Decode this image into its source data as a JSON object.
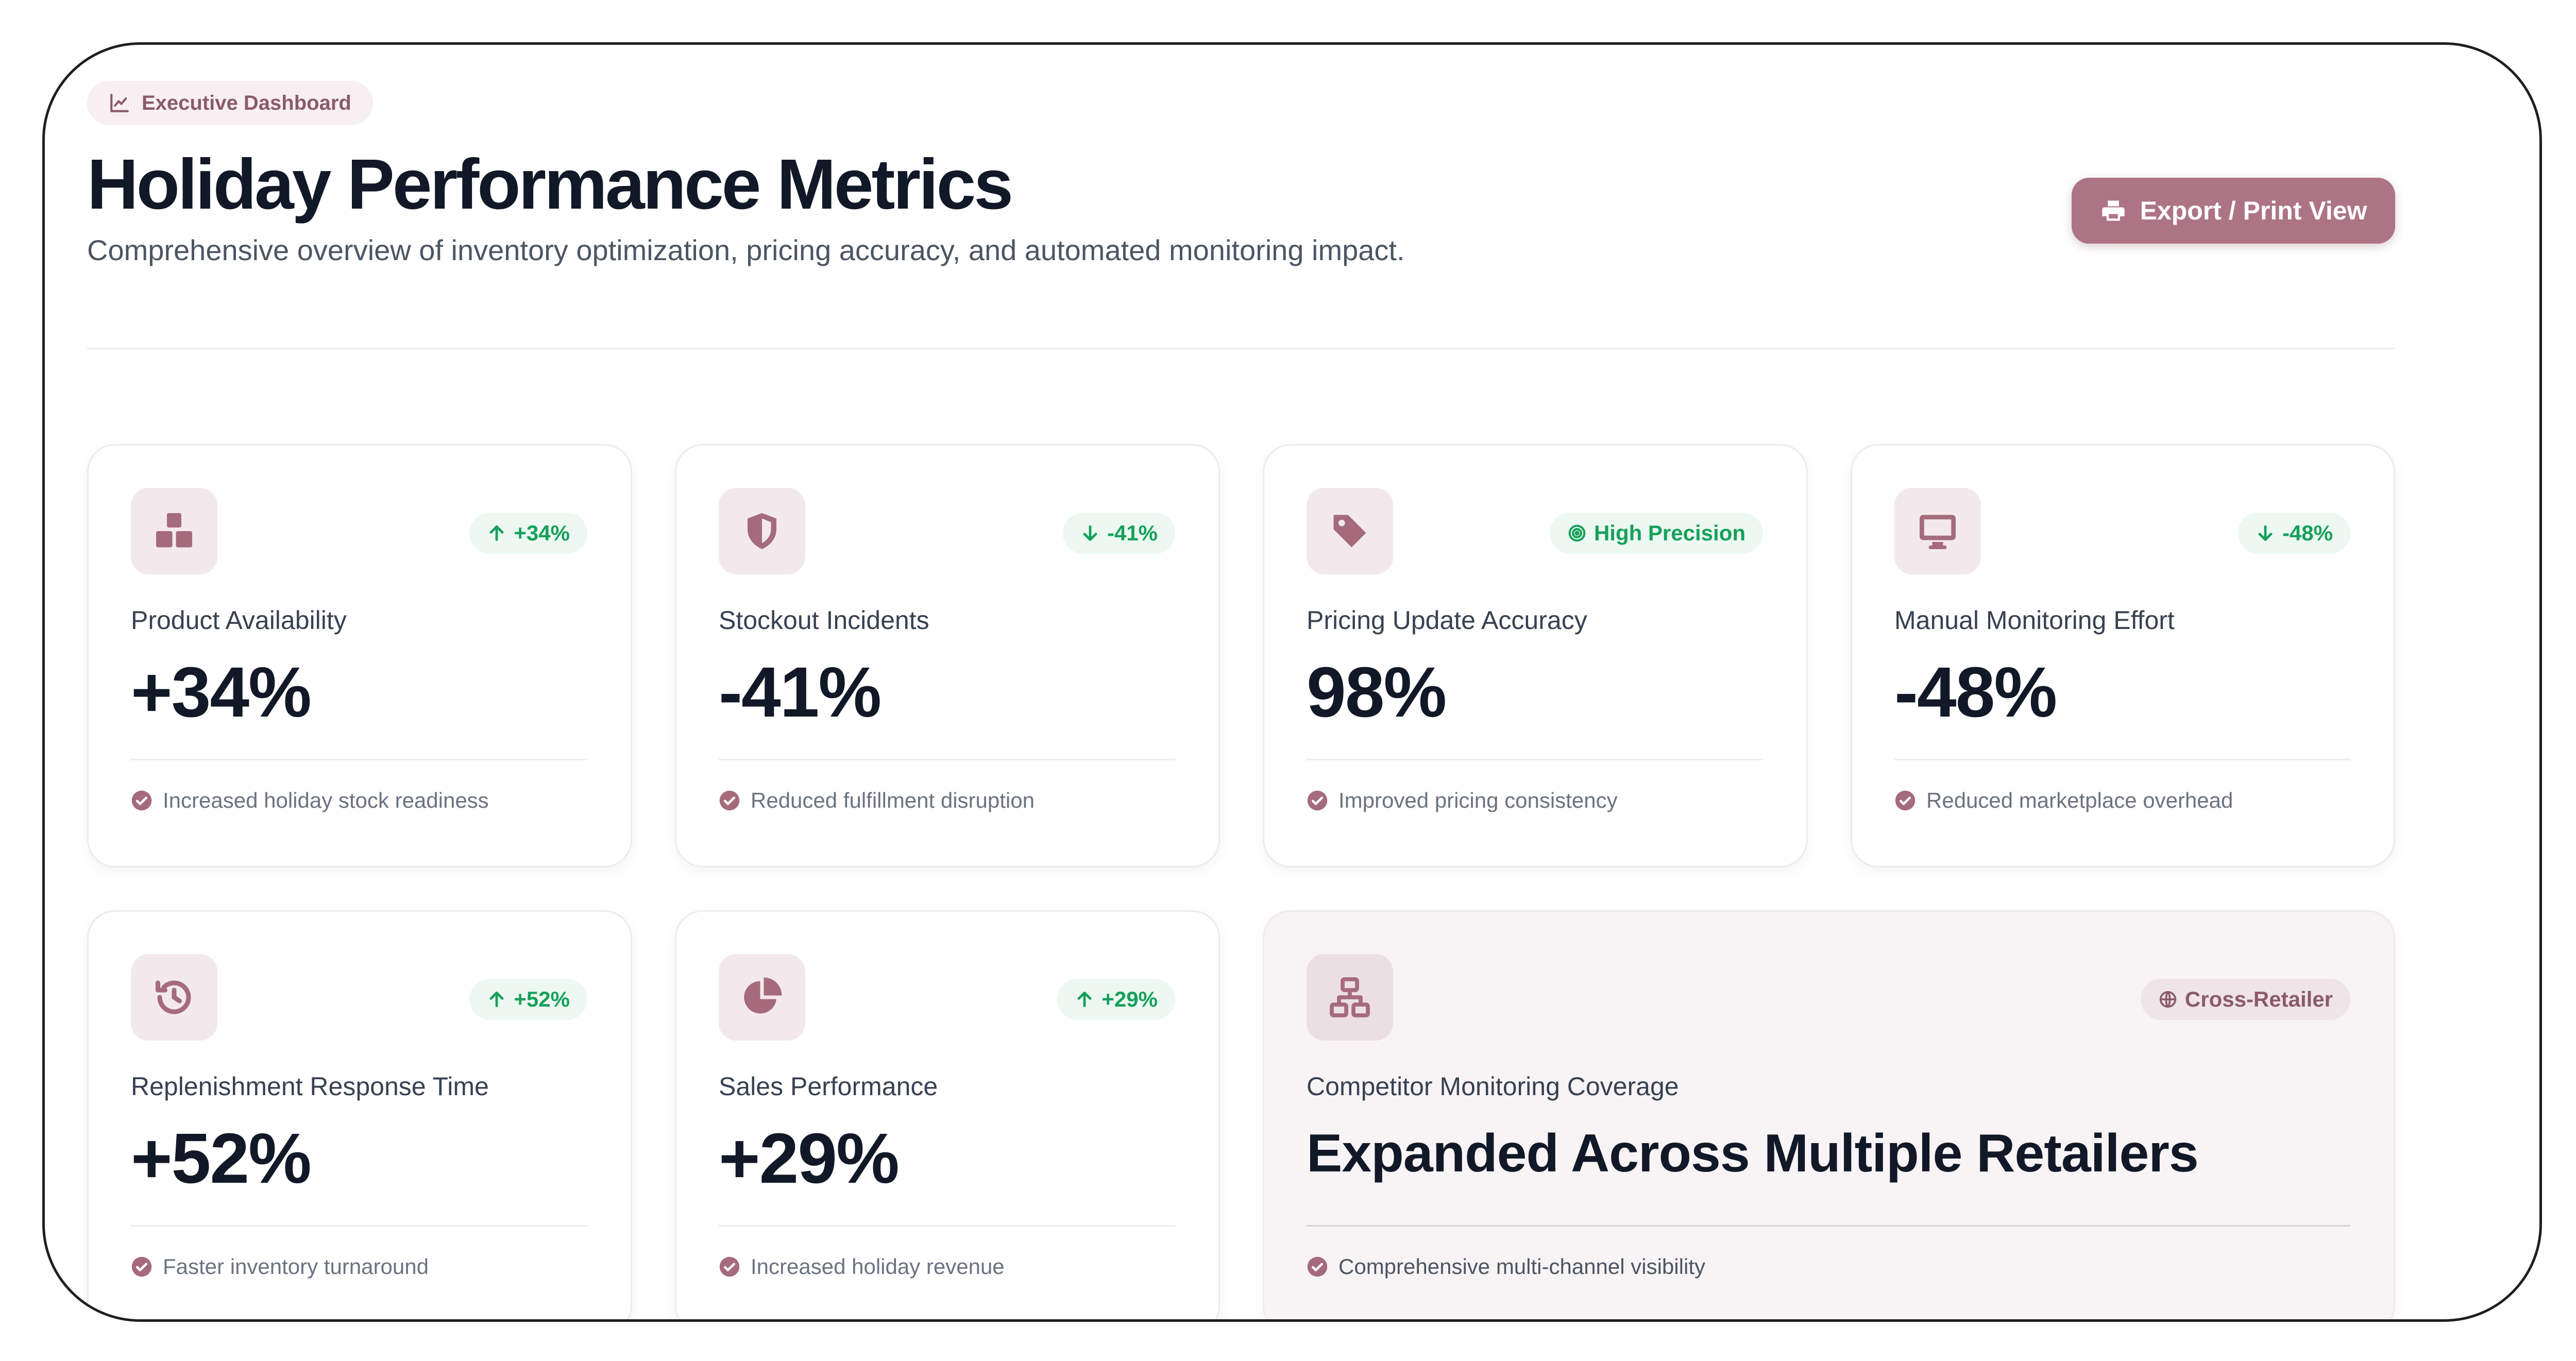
{
  "header": {
    "badge_label": "Executive Dashboard",
    "title": "Holiday Performance Metrics",
    "subtitle": "Comprehensive overview of inventory optimization, pricing accuracy, and automated monitoring impact.",
    "export_label": "Export / Print View"
  },
  "colors": {
    "accent": "#ad7485",
    "accent_soft": "#f3e9ec",
    "positive": "#16a05a",
    "positive_bg": "#ecf8f1",
    "text_dark": "#111827"
  },
  "cards": [
    {
      "icon": "boxes-icon",
      "label": "Product Availability",
      "value": "+34%",
      "trend": "+34%",
      "trend_direction": "up",
      "note": "Increased holiday stock readiness"
    },
    {
      "icon": "shield-icon",
      "label": "Stockout Incidents",
      "value": "-41%",
      "trend": "-41%",
      "trend_direction": "down",
      "note": "Reduced fulfillment disruption"
    },
    {
      "icon": "tags-icon",
      "label": "Pricing Update Accuracy",
      "value": "98%",
      "trend": "High Precision",
      "trend_direction": "target",
      "note": "Improved pricing consistency"
    },
    {
      "icon": "monitor-icon",
      "label": "Manual Monitoring Effort",
      "value": "-48%",
      "trend": "-48%",
      "trend_direction": "down",
      "note": "Reduced marketplace overhead"
    },
    {
      "icon": "history-icon",
      "label": "Replenishment Response Time",
      "value": "+52%",
      "trend": "+52%",
      "trend_direction": "up",
      "note": "Faster inventory turnaround"
    },
    {
      "icon": "pie-chart-icon",
      "label": "Sales Performance",
      "value": "+29%",
      "trend": "+29%",
      "trend_direction": "up",
      "note": "Increased holiday revenue"
    },
    {
      "icon": "network-icon",
      "label": "Competitor Monitoring Coverage",
      "value": "Expanded Across Multiple Retailers",
      "trend": "Cross-Retailer",
      "trend_direction": "globe",
      "note": "Comprehensive multi-channel visibility"
    }
  ]
}
